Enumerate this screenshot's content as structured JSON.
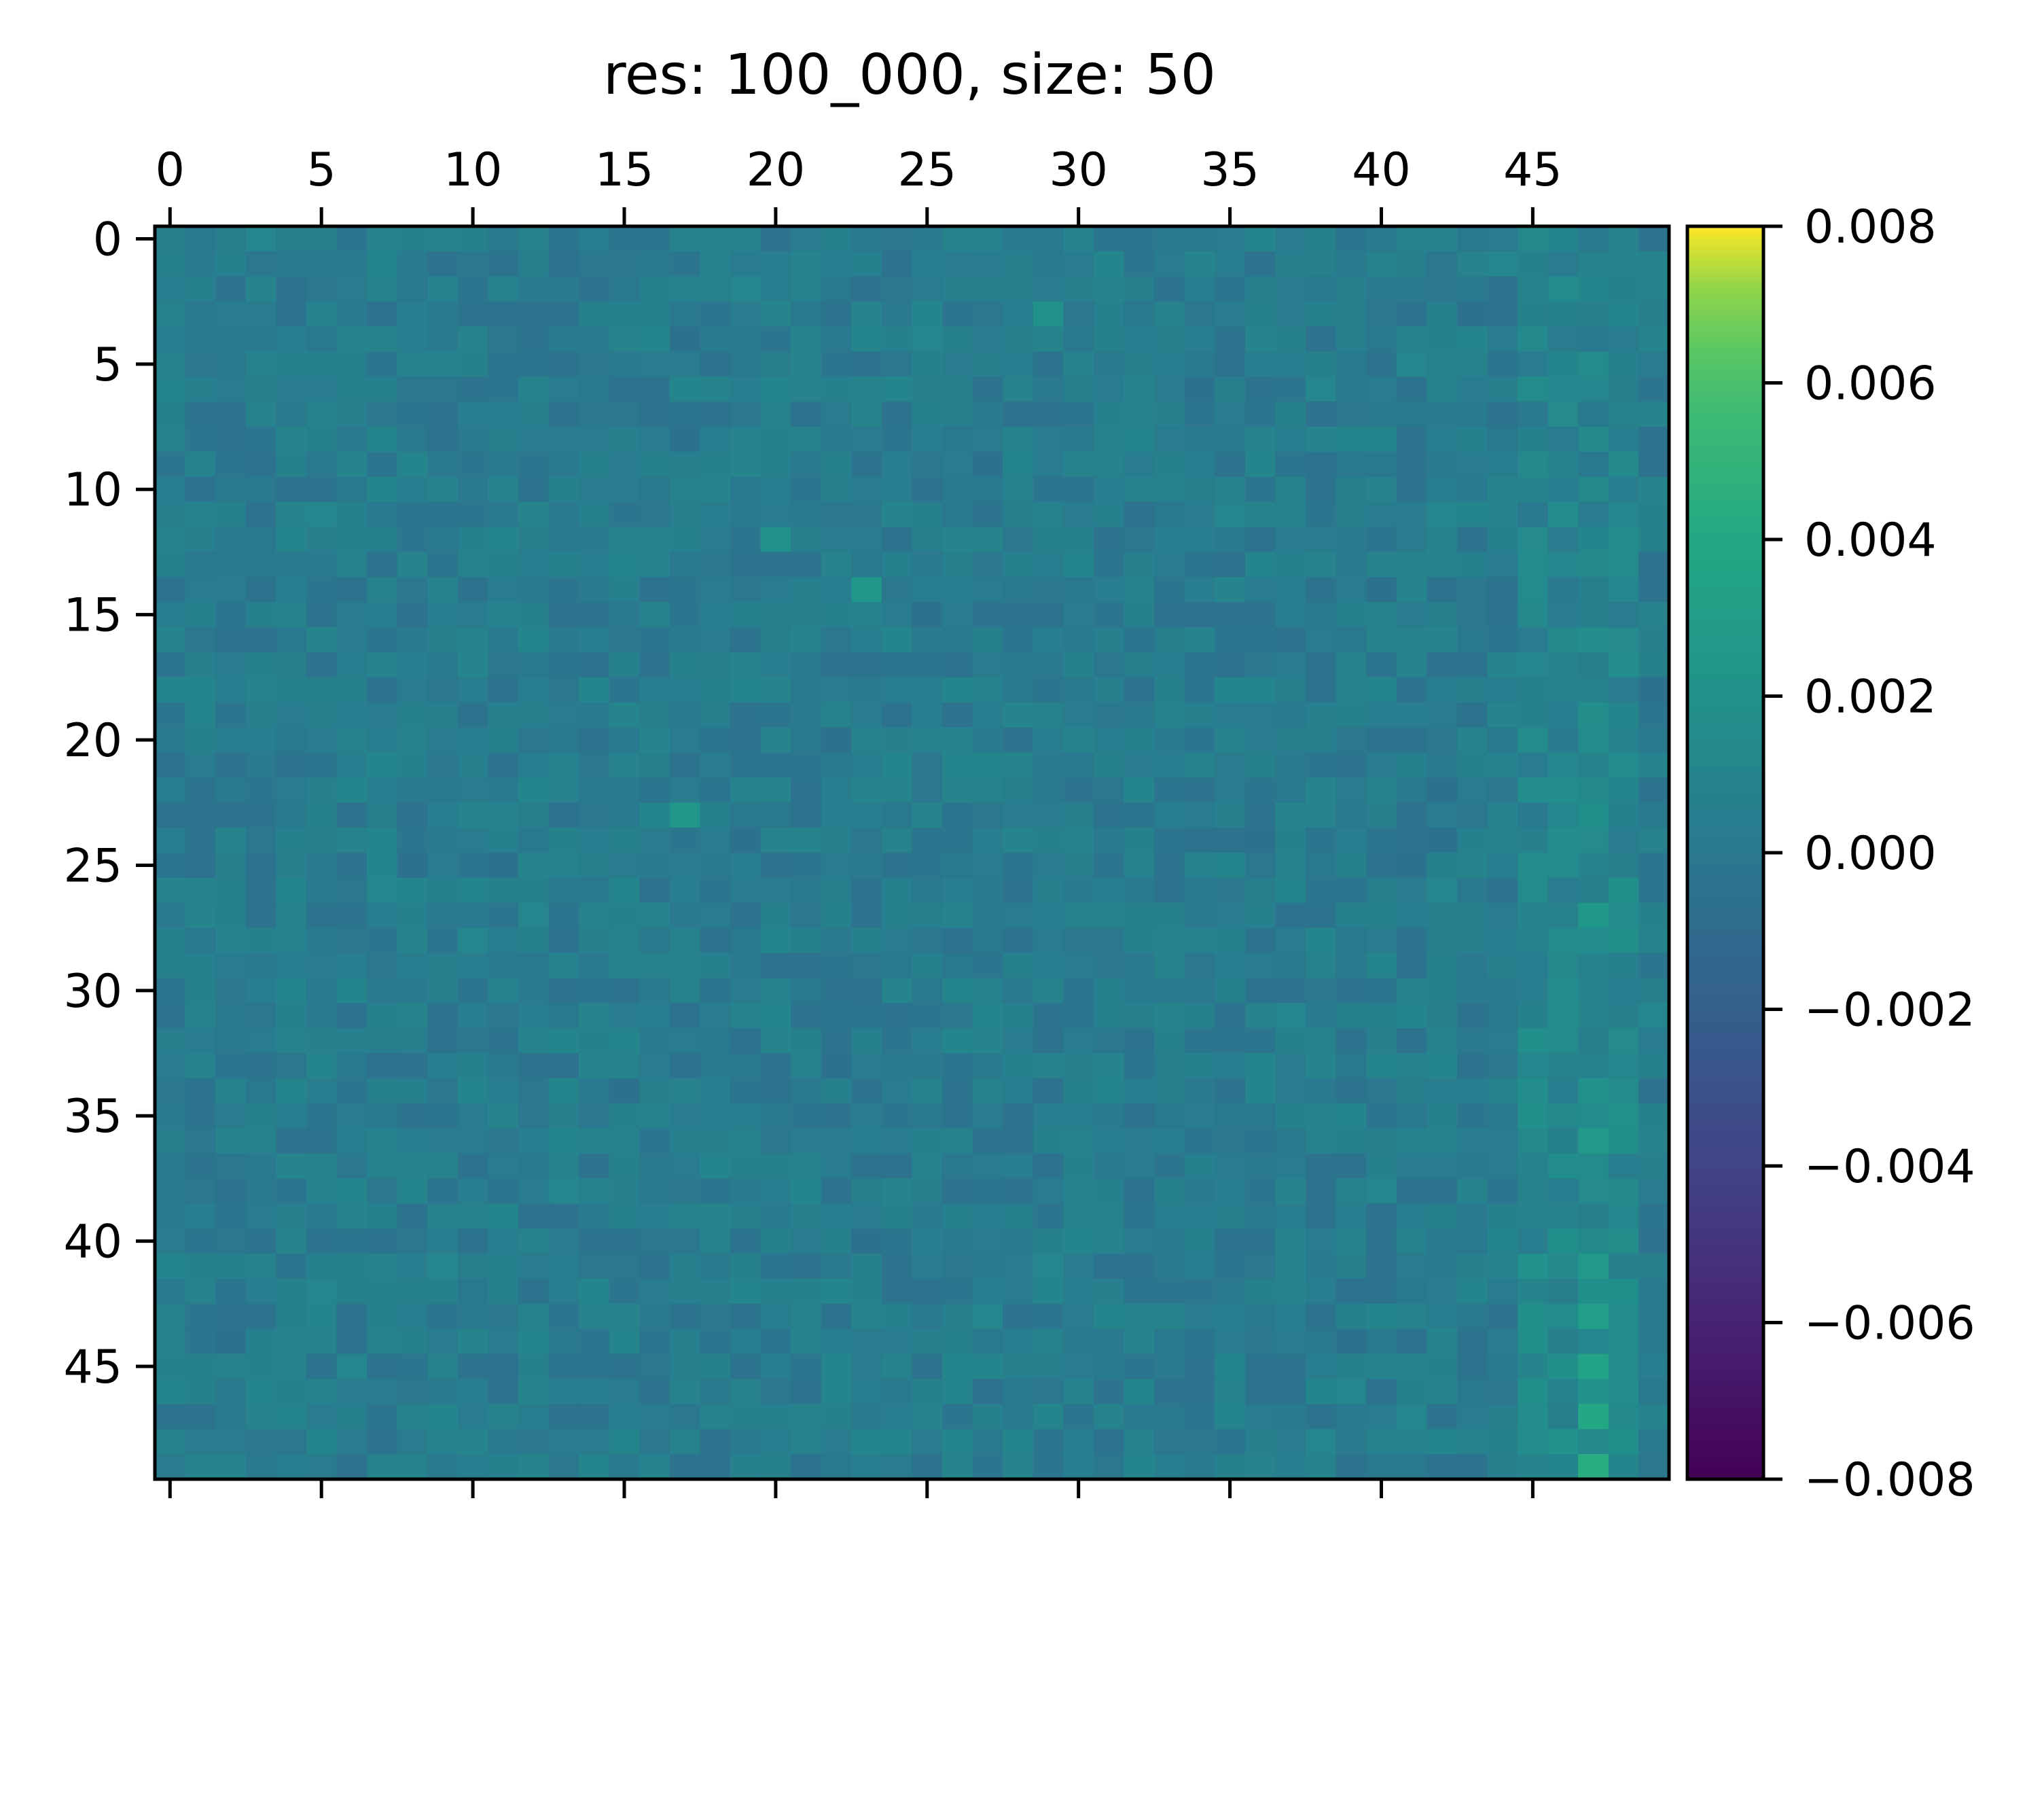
{
  "chart_data": {
    "type": "heatmap",
    "title": "res: 100_000, size: 50",
    "rows": 50,
    "cols": 50,
    "x_ticks": [
      "0",
      "5",
      "10",
      "15",
      "20",
      "25",
      "30",
      "35",
      "40",
      "45"
    ],
    "y_ticks": [
      "0",
      "5",
      "10",
      "15",
      "20",
      "25",
      "30",
      "35",
      "40",
      "45"
    ],
    "x_axis_position": "top",
    "colormap": "viridis",
    "vmin": -0.008,
    "vmax": 0.008,
    "colorbar": {
      "ticks": [
        0.008,
        0.006,
        0.004,
        0.002,
        0.0,
        -0.002,
        -0.004,
        -0.006,
        -0.008
      ],
      "tick_labels": [
        "0.008",
        "0.006",
        "0.004",
        "0.002",
        "0.000",
        "−0.002",
        "−0.004",
        "−0.006",
        "−0.008"
      ],
      "position": "right"
    },
    "value_distribution": {
      "baseline": 0.0003,
      "noise_amplitude": 0.0008,
      "hotspots": [
        {
          "row": 49,
          "col": 47,
          "value": 0.0045
        },
        {
          "row": 47,
          "col": 47,
          "value": 0.004
        },
        {
          "row": 45,
          "col": 47,
          "value": 0.0035
        },
        {
          "row": 43,
          "col": 47,
          "value": 0.003
        },
        {
          "row": 41,
          "col": 47,
          "value": 0.0028
        },
        {
          "row": 36,
          "col": 47,
          "value": 0.0028
        },
        {
          "row": 27,
          "col": 47,
          "value": 0.0025
        },
        {
          "row": 23,
          "col": 17,
          "value": 0.0025
        },
        {
          "row": 14,
          "col": 23,
          "value": 0.0025
        },
        {
          "row": 12,
          "col": 20,
          "value": 0.002
        },
        {
          "row": 3,
          "col": 29,
          "value": 0.002
        }
      ]
    }
  }
}
